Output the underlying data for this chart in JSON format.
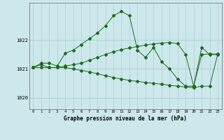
{
  "background_color": "#cce8ec",
  "grid_color": "#aacccc",
  "line_color": "#1a6b1a",
  "x_labels": [
    "0",
    "1",
    "2",
    "3",
    "4",
    "5",
    "6",
    "7",
    "8",
    "9",
    "10",
    "11",
    "12",
    "13",
    "14",
    "15",
    "16",
    "17",
    "18",
    "19",
    "20",
    "21",
    "22",
    "23"
  ],
  "x_values": [
    0,
    1,
    2,
    3,
    4,
    5,
    6,
    7,
    8,
    9,
    10,
    11,
    12,
    13,
    14,
    15,
    16,
    17,
    18,
    19,
    20,
    21,
    22,
    23
  ],
  "ylim": [
    1019.6,
    1023.3
  ],
  "yticks": [
    1020,
    1021,
    1022
  ],
  "xlabel": "Graphe pression niveau de la mer (hPa)",
  "series1": [
    1021.05,
    1021.2,
    1021.2,
    1021.1,
    1021.55,
    1021.65,
    1021.85,
    1022.05,
    1022.25,
    1022.5,
    1022.85,
    1023.0,
    1022.85,
    1021.65,
    1021.4,
    1021.75,
    1021.25,
    1021.0,
    1020.65,
    1020.4,
    1020.4,
    1021.75,
    1021.5,
    1021.5
  ],
  "series2": [
    1021.05,
    1021.15,
    1021.05,
    1021.05,
    1021.1,
    1021.15,
    1021.2,
    1021.3,
    1021.4,
    1021.5,
    1021.6,
    1021.67,
    1021.73,
    1021.78,
    1021.83,
    1021.87,
    1021.9,
    1021.92,
    1021.88,
    1021.5,
    1020.4,
    1021.5,
    1021.52,
    1021.52
  ],
  "series3": [
    1021.05,
    1021.05,
    1021.05,
    1021.05,
    1021.05,
    1021.0,
    1020.95,
    1020.9,
    1020.83,
    1020.77,
    1020.7,
    1020.65,
    1020.6,
    1020.57,
    1020.53,
    1020.5,
    1020.47,
    1020.43,
    1020.4,
    1020.37,
    1020.35,
    1020.4,
    1020.4,
    1021.52
  ]
}
